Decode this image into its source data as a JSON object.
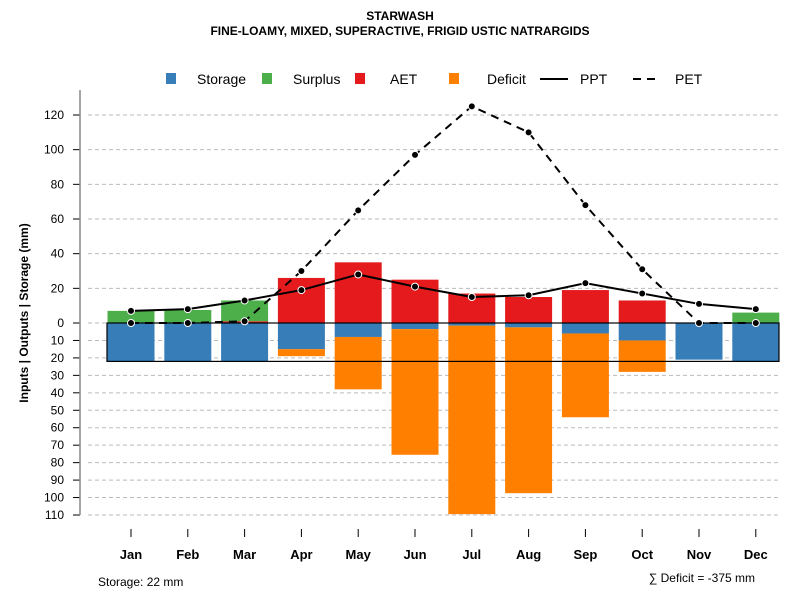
{
  "chart_data": {
    "type": "bar",
    "title": "STARWASH",
    "subtitle": "FINE-LOAMY, MIXED, SUPERACTIVE, FRIGID USTIC NATRARGIDS",
    "ylabel": "Inputs | Outputs | Storage    (mm)",
    "categories": [
      "Jan",
      "Feb",
      "Mar",
      "Apr",
      "May",
      "Jun",
      "Jul",
      "Aug",
      "Sep",
      "Oct",
      "Nov",
      "Dec"
    ],
    "upper_ticks": [
      0,
      20,
      40,
      60,
      80,
      100,
      120
    ],
    "lower_ticks": [
      0,
      10,
      20,
      30,
      40,
      50,
      60,
      70,
      80,
      90,
      100,
      110
    ],
    "ylim_upper": [
      0,
      120
    ],
    "ylim_lower": [
      0,
      110
    ],
    "series": [
      {
        "name": "Storage",
        "color": "#377EB8",
        "values": [
          22,
          22,
          22,
          15,
          8,
          3.5,
          1.5,
          2.5,
          6,
          10,
          21,
          22
        ]
      },
      {
        "name": "Surplus",
        "color": "#4DAF4A",
        "values": [
          7,
          7.5,
          12,
          0,
          0,
          0,
          0,
          0,
          0,
          0,
          0,
          6
        ]
      },
      {
        "name": "AET",
        "color": "#E41A1C",
        "values": [
          0,
          0,
          1,
          26,
          35,
          25,
          17,
          15,
          19,
          13,
          0,
          0
        ]
      },
      {
        "name": "Deficit",
        "color": "#FF7F00",
        "values": [
          0,
          0,
          0,
          4,
          30,
          72,
          108,
          95,
          48,
          18,
          0,
          0
        ]
      },
      {
        "name": "PPT",
        "color": "#000000",
        "values": [
          7,
          8,
          13,
          19,
          28,
          21,
          15,
          16,
          23,
          17,
          11,
          8
        ]
      },
      {
        "name": "PET",
        "color": "#000000",
        "values": [
          0,
          0,
          1,
          30,
          65,
          97,
          125,
          110,
          68,
          31,
          0,
          0
        ]
      }
    ],
    "legend_position": "top",
    "storage_note": "Storage: 22 mm",
    "deficit_note": "∑ Deficit = -375 mm",
    "storage_capacity": 22
  }
}
